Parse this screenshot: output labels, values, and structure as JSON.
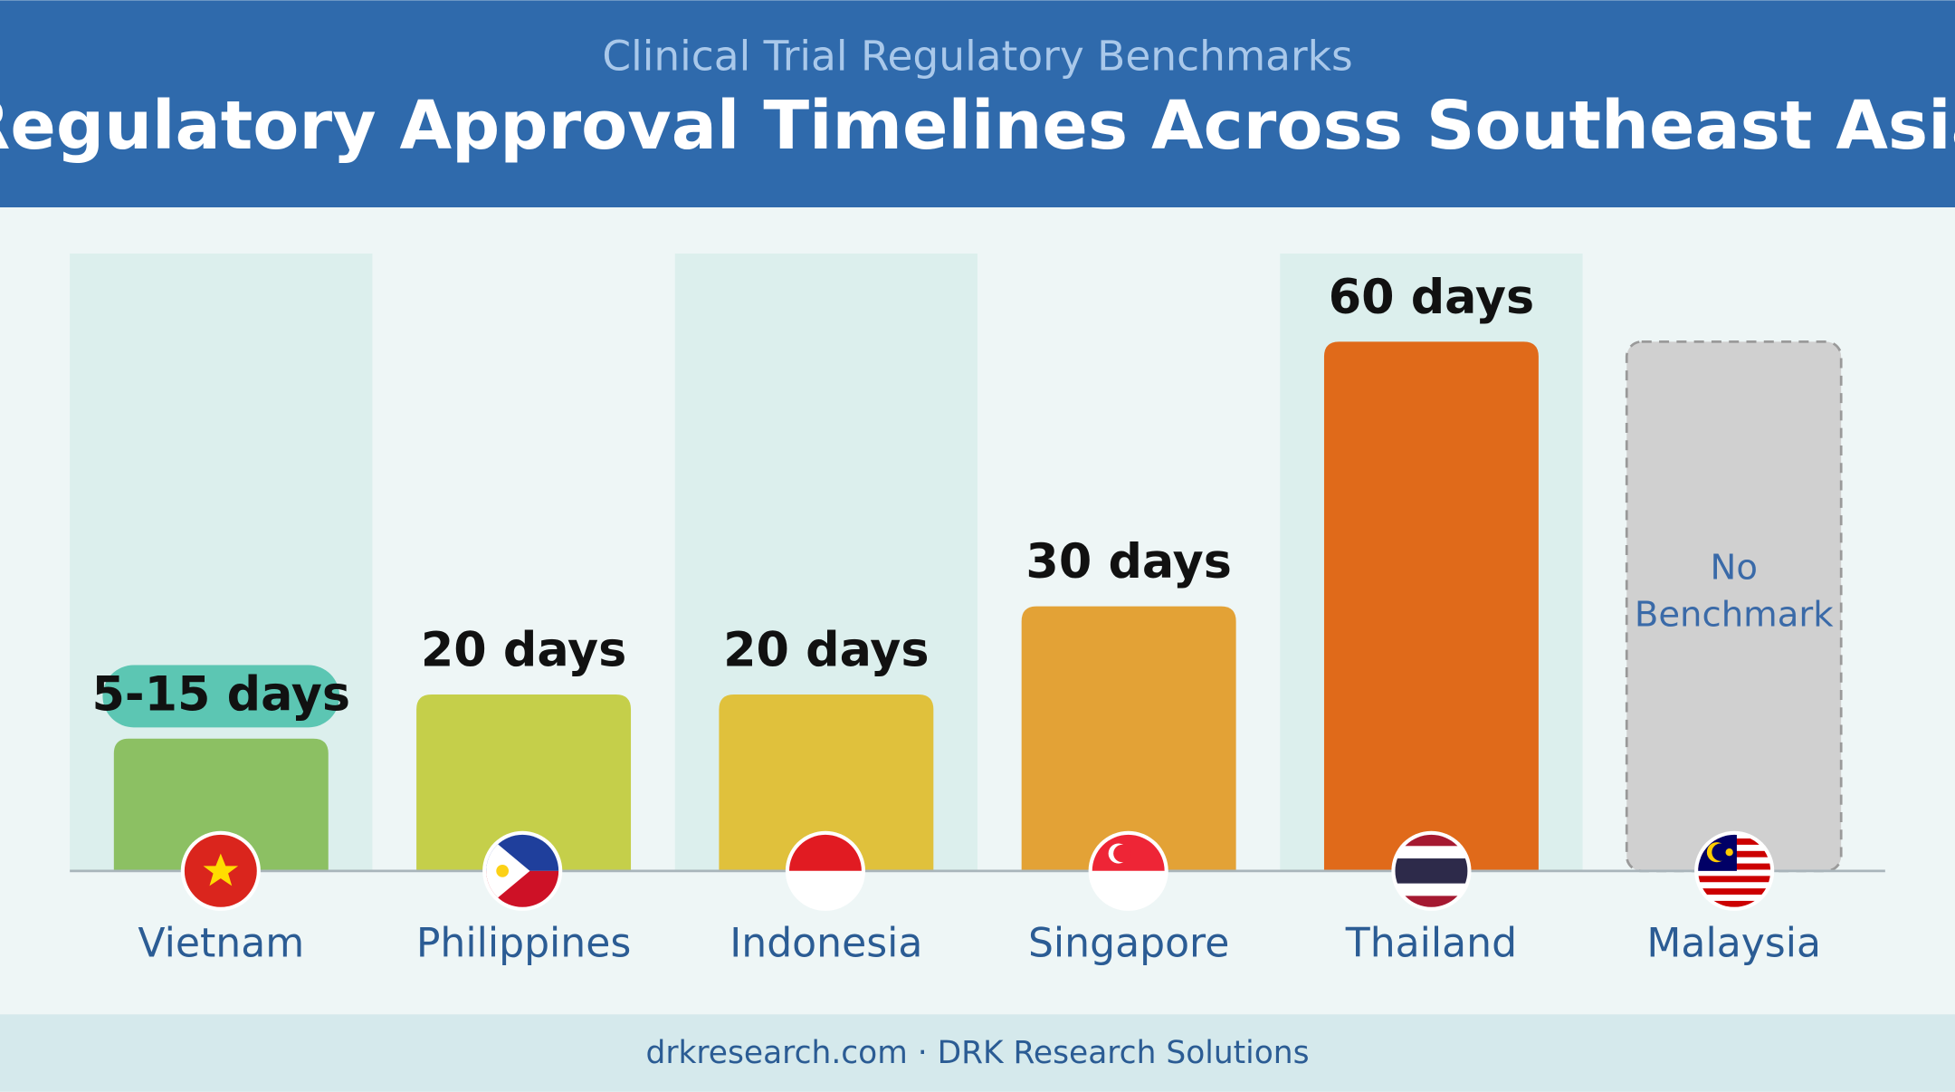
{
  "chart_data": {
    "type": "bar",
    "subtitle": "Clinical Trial Regulatory Benchmarks",
    "title": "Regulatory Approval Timelines Across Southeast Asia",
    "categories": [
      "Vietnam",
      "Philippines",
      "Indonesia",
      "Singapore",
      "Thailand",
      "Malaysia"
    ],
    "values": [
      15,
      20,
      20,
      30,
      60,
      null
    ],
    "value_labels": [
      "5-15 days",
      "20 days",
      "20 days",
      "30 days",
      "60 days",
      null
    ],
    "no_data_label": "No Benchmark",
    "colors": [
      "#8cc063",
      "#c5cf4a",
      "#e0c13c",
      "#e3a236",
      "#e06a1a",
      "#d0d0d0"
    ],
    "ylim": [
      0,
      70
    ],
    "footer": "drkresearch.com · DRK Research Solutions"
  }
}
